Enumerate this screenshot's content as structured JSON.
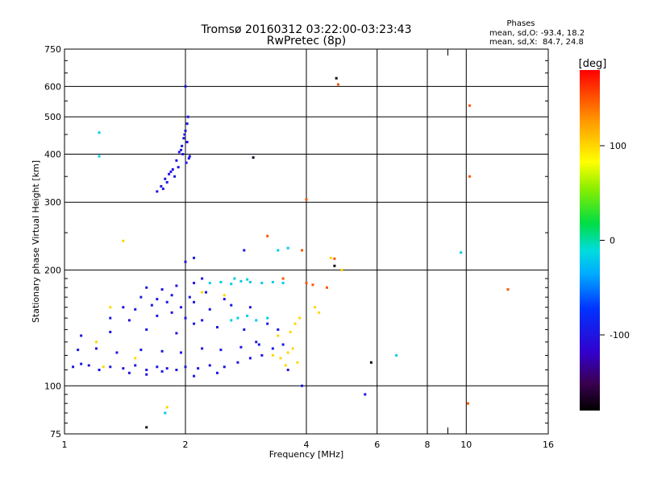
{
  "chart_data": {
    "type": "scatter",
    "title": "Tromsø 20160312 03:22:00-03:23:43",
    "subtitle": "RwPretec (8p)",
    "xlabel": "Frequency [MHz]",
    "ylabel": "Stationary phase Virtual Height [km]",
    "x_scale": "log2",
    "y_scale": "log",
    "xlim": [
      1,
      16
    ],
    "ylim": [
      75,
      750
    ],
    "x_ticks": [
      1,
      2,
      4,
      6,
      8,
      10,
      16
    ],
    "x_minor": [
      9
    ],
    "y_ticks": [
      75,
      100,
      200,
      300,
      400,
      500,
      600,
      750
    ],
    "grid": true,
    "stats": {
      "header": "Phases",
      "line_o": "mean, sd,O: -93.4, 18.2",
      "line_x": "mean, sd,X:  84.7, 24.8"
    },
    "colorbar": {
      "label": "[deg]",
      "ticks": [
        100,
        0,
        -100
      ],
      "range": [
        -180,
        180
      ]
    },
    "series": [
      {
        "color_value_deg": -100,
        "points": [
          [
            1.7,
            320
          ],
          [
            1.74,
            330
          ],
          [
            1.78,
            345
          ],
          [
            1.82,
            355
          ],
          [
            1.86,
            365
          ],
          [
            1.9,
            385
          ],
          [
            1.93,
            405
          ],
          [
            1.96,
            420
          ],
          [
            1.98,
            440
          ],
          [
            2.0,
            460
          ],
          [
            2.02,
            480
          ],
          [
            2.03,
            500
          ],
          [
            2.01,
            380
          ],
          [
            2.04,
            390
          ],
          [
            1.97,
            400
          ],
          [
            1.92,
            370
          ],
          [
            1.88,
            350
          ],
          [
            1.8,
            338
          ],
          [
            1.84,
            360
          ],
          [
            1.95,
            410
          ],
          [
            2.05,
            395
          ],
          [
            1.99,
            450
          ],
          [
            2.02,
            430
          ],
          [
            1.76,
            325
          ],
          [
            2.0,
            600
          ],
          [
            1.05,
            112
          ],
          [
            1.1,
            114
          ],
          [
            1.15,
            113
          ],
          [
            1.22,
            110
          ],
          [
            1.3,
            112
          ],
          [
            1.4,
            111
          ],
          [
            1.5,
            113
          ],
          [
            1.6,
            110
          ],
          [
            1.7,
            112
          ],
          [
            1.8,
            111
          ],
          [
            1.9,
            110
          ],
          [
            2.0,
            112
          ],
          [
            2.15,
            111
          ],
          [
            2.3,
            113
          ],
          [
            2.5,
            112
          ],
          [
            2.7,
            115
          ],
          [
            2.9,
            118
          ],
          [
            3.1,
            120
          ],
          [
            3.3,
            125
          ],
          [
            3.5,
            128
          ],
          [
            1.08,
            124
          ],
          [
            1.2,
            125
          ],
          [
            1.35,
            122
          ],
          [
            1.55,
            124
          ],
          [
            1.75,
            123
          ],
          [
            1.95,
            122
          ],
          [
            2.2,
            125
          ],
          [
            2.45,
            124
          ],
          [
            2.75,
            126
          ],
          [
            3.05,
            128
          ],
          [
            1.1,
            135
          ],
          [
            1.3,
            138
          ],
          [
            1.6,
            140
          ],
          [
            1.9,
            137
          ],
          [
            2.1,
            145
          ],
          [
            2.4,
            142
          ],
          [
            2.8,
            140
          ],
          [
            3.2,
            145
          ],
          [
            1.4,
            160
          ],
          [
            1.5,
            158
          ],
          [
            1.65,
            162
          ],
          [
            1.8,
            165
          ],
          [
            1.95,
            160
          ],
          [
            2.1,
            165
          ],
          [
            2.3,
            158
          ],
          [
            2.6,
            162
          ],
          [
            2.9,
            160
          ],
          [
            1.3,
            150
          ],
          [
            1.45,
            148
          ],
          [
            1.7,
            152
          ],
          [
            1.85,
            155
          ],
          [
            2.0,
            150
          ],
          [
            2.2,
            148
          ],
          [
            1.55,
            170
          ],
          [
            1.7,
            168
          ],
          [
            1.85,
            172
          ],
          [
            2.05,
            170
          ],
          [
            2.25,
            175
          ],
          [
            2.5,
            168
          ],
          [
            1.6,
            180
          ],
          [
            1.75,
            178
          ],
          [
            1.9,
            182
          ],
          [
            2.1,
            185
          ],
          [
            2.2,
            190
          ],
          [
            1.45,
            108
          ],
          [
            1.6,
            107
          ],
          [
            1.75,
            109
          ],
          [
            2.1,
            106
          ],
          [
            2.4,
            108
          ],
          [
            3.0,
            130
          ],
          [
            3.4,
            140
          ],
          [
            3.6,
            110
          ],
          [
            2.1,
            215
          ],
          [
            2.0,
            210
          ],
          [
            2.8,
            225
          ],
          [
            3.9,
            100
          ],
          [
            5.6,
            95
          ]
        ]
      },
      {
        "color_value_deg": -20,
        "points": [
          [
            2.3,
            185
          ],
          [
            2.45,
            186
          ],
          [
            2.6,
            184
          ],
          [
            2.75,
            187
          ],
          [
            2.9,
            186
          ],
          [
            3.1,
            185
          ],
          [
            3.3,
            186
          ],
          [
            3.5,
            185
          ],
          [
            2.65,
            190
          ],
          [
            2.85,
            189
          ],
          [
            2.7,
            150
          ],
          [
            2.85,
            152
          ],
          [
            3.0,
            148
          ],
          [
            3.2,
            150
          ],
          [
            2.6,
            148
          ],
          [
            3.4,
            225
          ],
          [
            3.6,
            228
          ],
          [
            6.7,
            120
          ],
          [
            1.22,
            455
          ],
          [
            1.22,
            395
          ],
          [
            9.7,
            222
          ],
          [
            1.78,
            85
          ]
        ]
      },
      {
        "color_value_deg": 100,
        "points": [
          [
            3.3,
            120
          ],
          [
            3.45,
            118
          ],
          [
            3.6,
            122
          ],
          [
            3.7,
            125
          ],
          [
            3.8,
            115
          ],
          [
            3.55,
            113
          ],
          [
            3.4,
            135
          ],
          [
            3.65,
            138
          ],
          [
            3.75,
            145
          ],
          [
            3.85,
            150
          ],
          [
            1.2,
            130
          ],
          [
            1.25,
            112
          ],
          [
            1.5,
            118
          ],
          [
            1.3,
            160
          ],
          [
            1.4,
            238
          ],
          [
            2.2,
            175
          ],
          [
            4.2,
            160
          ],
          [
            4.3,
            155
          ],
          [
            4.6,
            215
          ],
          [
            4.9,
            200
          ],
          [
            1.8,
            88
          ],
          [
            2.5,
            172
          ]
        ]
      },
      {
        "color_value_deg": 150,
        "points": [
          [
            3.2,
            245
          ],
          [
            4.0,
            305
          ],
          [
            4.7,
            214
          ],
          [
            4.5,
            180
          ],
          [
            4.15,
            183
          ],
          [
            3.5,
            190
          ],
          [
            10.2,
            535
          ],
          [
            10.2,
            350
          ],
          [
            10.1,
            90
          ],
          [
            4.8,
            607
          ],
          [
            12.7,
            178
          ],
          [
            4.0,
            185
          ],
          [
            3.9,
            225
          ]
        ]
      },
      {
        "color_value_deg": -170,
        "points": [
          [
            1.6,
            78
          ],
          [
            2.95,
            392
          ],
          [
            4.75,
            630
          ],
          [
            4.7,
            205
          ],
          [
            5.8,
            115
          ]
        ]
      }
    ]
  }
}
